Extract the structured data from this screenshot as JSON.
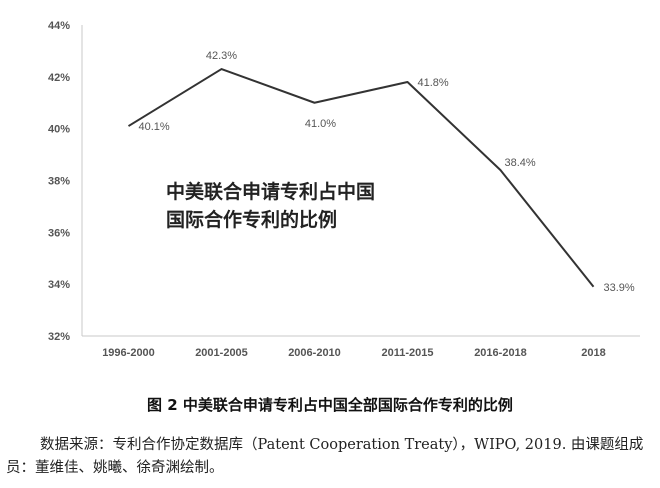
{
  "chart_data": {
    "type": "line",
    "categories": [
      "1996-2000",
      "2001-2005",
      "2006-2010",
      "2011-2015",
      "2016-2018",
      "2018"
    ],
    "series": [
      {
        "values": [
          40.1,
          42.3,
          41.0,
          41.8,
          38.4,
          33.9
        ]
      }
    ],
    "data_labels": [
      "40.1%",
      "42.3%",
      "41.0%",
      "41.8%",
      "38.4%",
      "33.9%"
    ],
    "y_ticks": [
      32,
      34,
      36,
      38,
      40,
      42,
      44
    ],
    "y_tick_suffix": "%",
    "ylim": [
      32,
      44
    ],
    "grid": false,
    "line_color": "#333333",
    "title_lines": [
      "中美联合申请专利占中国",
      "国际合作专利的比例"
    ]
  },
  "caption": "图 2  中美联合申请专利占中国全部国际合作专利的比例",
  "source": "数据来源：专利合作协定数据库（Patent Cooperation Treaty），WIPO, 2019. 由课题组成员：董维佳、姚曦、徐奇渊绘制。"
}
